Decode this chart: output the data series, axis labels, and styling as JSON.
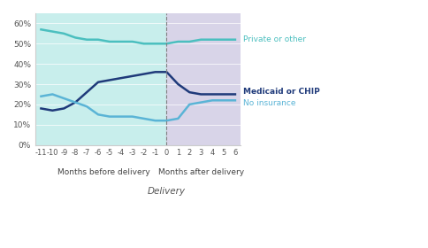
{
  "x_before": [
    -11,
    -10,
    -9,
    -8,
    -7,
    -6,
    -5,
    -4,
    -3,
    -2,
    -1
  ],
  "x_after": [
    0,
    1,
    2,
    3,
    4,
    5,
    6
  ],
  "private_before": [
    57,
    56,
    55,
    53,
    52,
    52,
    51,
    51,
    51,
    50,
    50
  ],
  "private_after": [
    50,
    51,
    51,
    52,
    52,
    52,
    52
  ],
  "medicaid_before": [
    18,
    17,
    18,
    21,
    26,
    31,
    32,
    33,
    34,
    35,
    36
  ],
  "medicaid_after": [
    36,
    30,
    26,
    25,
    25,
    25,
    25
  ],
  "noinsurance_before": [
    24,
    25,
    23,
    21,
    19,
    15,
    14,
    14,
    14,
    13,
    12
  ],
  "noinsurance_after": [
    12,
    13,
    20,
    21,
    22,
    22,
    22
  ],
  "color_private": "#4bbfbf",
  "color_medicaid": "#1f3a7a",
  "color_noinsurance": "#5ab4d6",
  "bg_before": "#c8eeec",
  "bg_after": "#d8d4e8",
  "ylim": [
    0,
    65
  ],
  "yticks": [
    0,
    10,
    20,
    30,
    40,
    50,
    60
  ],
  "ytick_labels": [
    "0%",
    "10%",
    "20%",
    "30%",
    "40%",
    "50%",
    "60%"
  ],
  "label_private": "Private or other",
  "label_medicaid": "Medicaid or CHIP",
  "label_noinsurance": "No insurance",
  "xlabel": "Delivery",
  "label_before": "Months before delivery",
  "label_after": "Months after delivery"
}
